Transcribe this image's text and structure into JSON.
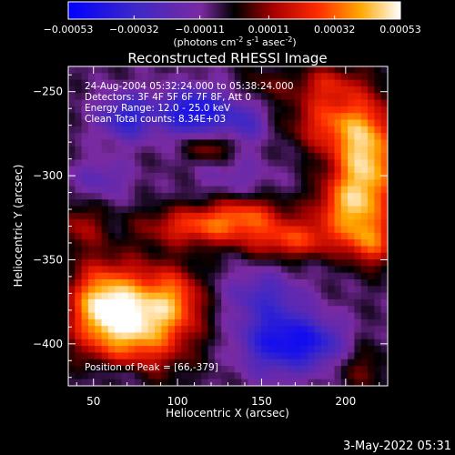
{
  "chart_data": {
    "type": "heatmap",
    "title": "Reconstructed RHESSI Image",
    "xlabel": "Heliocentric X (arcsec)",
    "ylabel": "Heliocentric Y (arcsec)",
    "xlim": [
      35,
      225
    ],
    "ylim": [
      -425,
      -235
    ],
    "x_ticks": [
      50,
      100,
      150,
      200
    ],
    "y_ticks": [
      -250,
      -300,
      -350,
      -400
    ],
    "colorbar": {
      "range": [
        -0.00053,
        0.00053
      ],
      "tick_values": [
        -0.00053,
        -0.00032,
        -0.00011,
        0.00011,
        0.00032,
        0.00053
      ],
      "tick_labels": [
        "-0.00053",
        "-0.00032",
        "-0.00011",
        "0.00011",
        "0.00032",
        "0.00053"
      ],
      "unit_parts": [
        "(photons cm",
        "-2",
        " s",
        "-1",
        " asec",
        "-2",
        ")"
      ]
    },
    "annotations": [
      "24-Aug-2004 05:32:24.000 to 05:38:24.000",
      "Detectors: 3F 4F 5F 6F 7F 8F, Att 0",
      "Energy Range: 12.0 - 25.0 keV",
      "Clean     Total counts: 8.34E+03"
    ],
    "peak_text": "Position of Peak = [66,-379]",
    "peak": [
      66,
      -379
    ],
    "sources": [
      {
        "x": 75,
        "y": -385,
        "sx": 22,
        "sy": 20,
        "amp": 0.00058
      },
      {
        "x": 53,
        "y": -375,
        "sx": 12,
        "sy": 16,
        "amp": 0.00028
      },
      {
        "x": 100,
        "y": -372,
        "sx": 10,
        "sy": 12,
        "amp": 0.00018
      },
      {
        "x": 212,
        "y": -290,
        "sx": 14,
        "sy": 24,
        "amp": 0.00052
      },
      {
        "x": 200,
        "y": -320,
        "sx": 14,
        "sy": 12,
        "amp": 0.0003
      },
      {
        "x": 188,
        "y": -268,
        "sx": 16,
        "sy": 12,
        "amp": 0.00026
      },
      {
        "x": 215,
        "y": -340,
        "sx": 10,
        "sy": 10,
        "amp": 0.0003
      },
      {
        "x": 115,
        "y": -330,
        "sx": 24,
        "sy": 8,
        "amp": 0.00033
      },
      {
        "x": 168,
        "y": -338,
        "sx": 20,
        "sy": 8,
        "amp": 0.0003
      },
      {
        "x": 142,
        "y": -322,
        "sx": 16,
        "sy": 7,
        "amp": 0.00022
      },
      {
        "x": 42,
        "y": -330,
        "sx": 10,
        "sy": 10,
        "amp": 0.00018
      },
      {
        "x": 120,
        "y": -283,
        "sx": 10,
        "sy": 6,
        "amp": 0.0002
      },
      {
        "x": 188,
        "y": -245,
        "sx": 14,
        "sy": 8,
        "amp": 0.0002
      },
      {
        "x": 150,
        "y": -247,
        "sx": 10,
        "sy": 8,
        "amp": 0.00012
      },
      {
        "x": 210,
        "y": -415,
        "sx": 12,
        "sy": 10,
        "amp": 0.00012
      },
      {
        "x": 70,
        "y": -265,
        "sx": 12,
        "sy": 10,
        "amp": -0.0003
      },
      {
        "x": 110,
        "y": -262,
        "sx": 14,
        "sy": 10,
        "amp": -0.0004
      },
      {
        "x": 140,
        "y": -268,
        "sx": 10,
        "sy": 10,
        "amp": -0.0002
      },
      {
        "x": 160,
        "y": -398,
        "sx": 16,
        "sy": 14,
        "amp": -0.00038
      },
      {
        "x": 150,
        "y": -370,
        "sx": 16,
        "sy": 10,
        "amp": -0.00018
      },
      {
        "x": 185,
        "y": -400,
        "sx": 12,
        "sy": 10,
        "amp": -0.00022
      },
      {
        "x": 55,
        "y": -302,
        "sx": 12,
        "sy": 8,
        "amp": -0.00015
      },
      {
        "x": 65,
        "y": -418,
        "sx": 12,
        "sy": 6,
        "amp": -0.00012
      },
      {
        "x": 135,
        "y": -300,
        "sx": 16,
        "sy": 8,
        "amp": -0.0001
      }
    ],
    "background": -6e-05
  },
  "footer": {
    "timestamp": "3-May-2022 05:31"
  }
}
